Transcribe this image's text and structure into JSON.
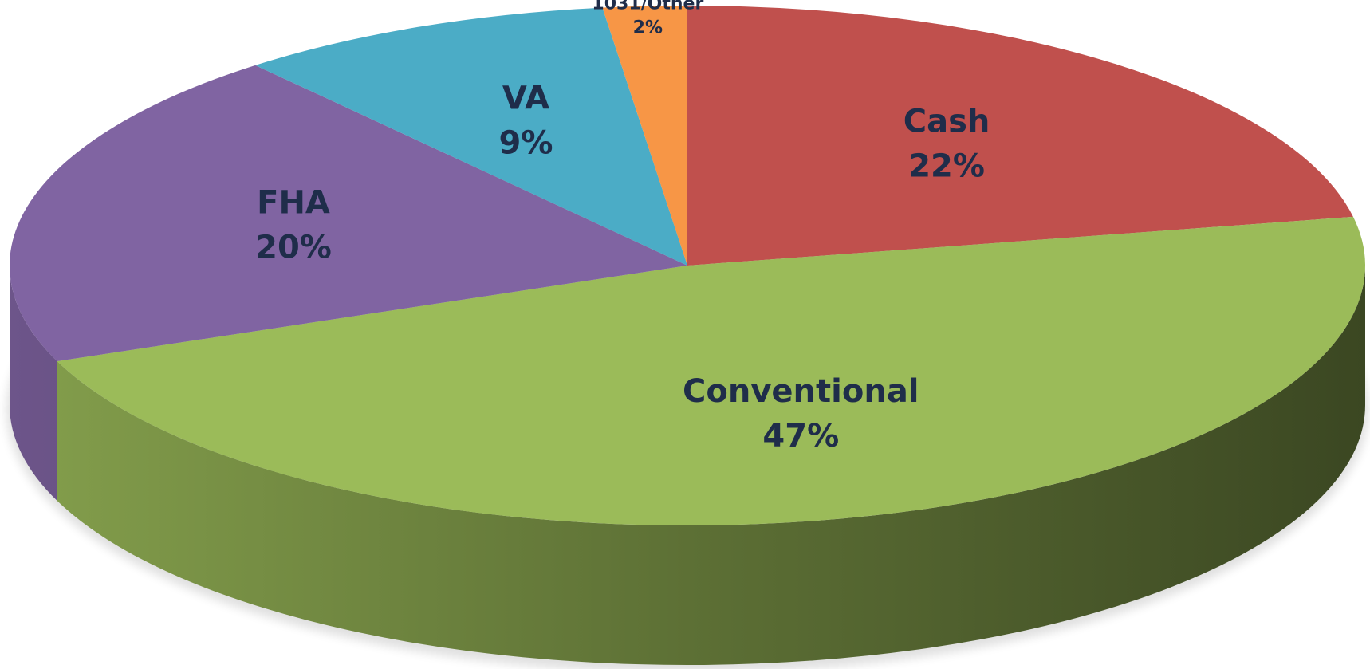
{
  "chart_data": {
    "type": "pie",
    "categories": [
      "Cash",
      "Conventional",
      "FHA",
      "VA",
      "1031/Other"
    ],
    "values": [
      22,
      47,
      20,
      9,
      2
    ],
    "value_labels": [
      "22%",
      "47%",
      "20%",
      "9%",
      "2%"
    ],
    "colors": [
      "#c0504d",
      "#9bbb59",
      "#8064a2",
      "#4bacc6",
      "#f79646"
    ]
  }
}
